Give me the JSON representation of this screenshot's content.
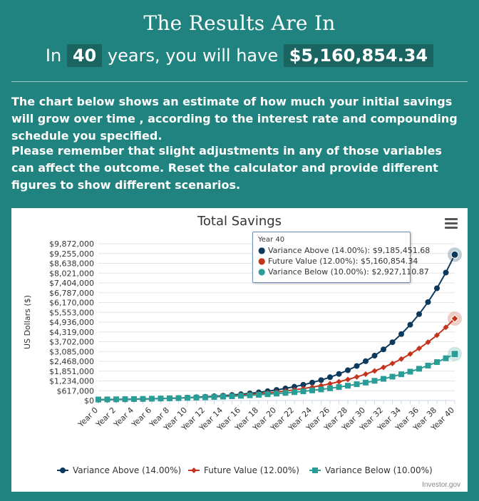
{
  "header": {
    "title": "The Results Are In",
    "summary_prefix": "In",
    "years": "40",
    "summary_middle": "years, you will have",
    "total": "$5,160,854.34"
  },
  "paragraphs": [
    "The chart below shows an estimate of how much your initial savings will grow over time , according to the interest rate and compounding schedule you specified.",
    "Please remember that slight adjustments in any of those variables can affect the outcome. Reset the calculator and provide different figures to show different scenarios."
  ],
  "credit": "Investor.gov",
  "menu_icon": "hamburger-menu-icon",
  "tooltip": {
    "title": "Year 40",
    "rows": [
      {
        "label": "Variance Above (14.00%): $9,185,451.68",
        "color": "#0d3a5c"
      },
      {
        "label": "Future Value (12.00%): $5,160,854.34",
        "color": "#c4341c"
      },
      {
        "label": "Variance Below (10.00%): $2,927,110.87",
        "color": "#2a9d96"
      }
    ]
  },
  "chart_data": {
    "type": "line",
    "title": "Total Savings",
    "ylabel": "US Dollars ($)",
    "xlabel": "",
    "ylim": [
      0,
      9872000
    ],
    "y_ticks": [
      0,
      617000,
      1234000,
      1851000,
      2468000,
      3085000,
      3702000,
      4319000,
      4936000,
      5553000,
      6170000,
      6787000,
      7404000,
      8021000,
      8638000,
      9255000,
      9872000
    ],
    "y_tick_labels": [
      "$0",
      "$617,000",
      "$1,234,000",
      "$1,851,000",
      "$2,468,000",
      "$3,085,000",
      "$3,702,000",
      "$4,319,000",
      "$4,936,000",
      "$5,553,000",
      "$6,170,000",
      "$6,787,000",
      "$7,404,000",
      "$8,021,000",
      "$8,638,000",
      "$9,255,000",
      "$9,872,000"
    ],
    "x_tick_labels": [
      "Year 0",
      "Year 2",
      "Year 4",
      "Year 6",
      "Year 8",
      "Year 10",
      "Year 12",
      "Year 14",
      "Year 16",
      "Year 18",
      "Year 20",
      "Year 22",
      "Year 24",
      "Year 26",
      "Year 28",
      "Year 30",
      "Year 32",
      "Year 34",
      "Year 36",
      "Year 38",
      "Year 40"
    ],
    "grid": true,
    "legend_position": "bottom",
    "series": [
      {
        "name": "Variance Above (14.00%)",
        "color": "#0d3a5c",
        "marker": "circle",
        "rate": 0.14,
        "final": 9185451.68
      },
      {
        "name": "Future Value (12.00%)",
        "color": "#c4341c",
        "marker": "diamond",
        "rate": 0.12,
        "final": 5160854.34
      },
      {
        "name": "Variance Below (10.00%)",
        "color": "#2a9d96",
        "marker": "square",
        "rate": 0.1,
        "final": 2927110.87
      }
    ]
  }
}
